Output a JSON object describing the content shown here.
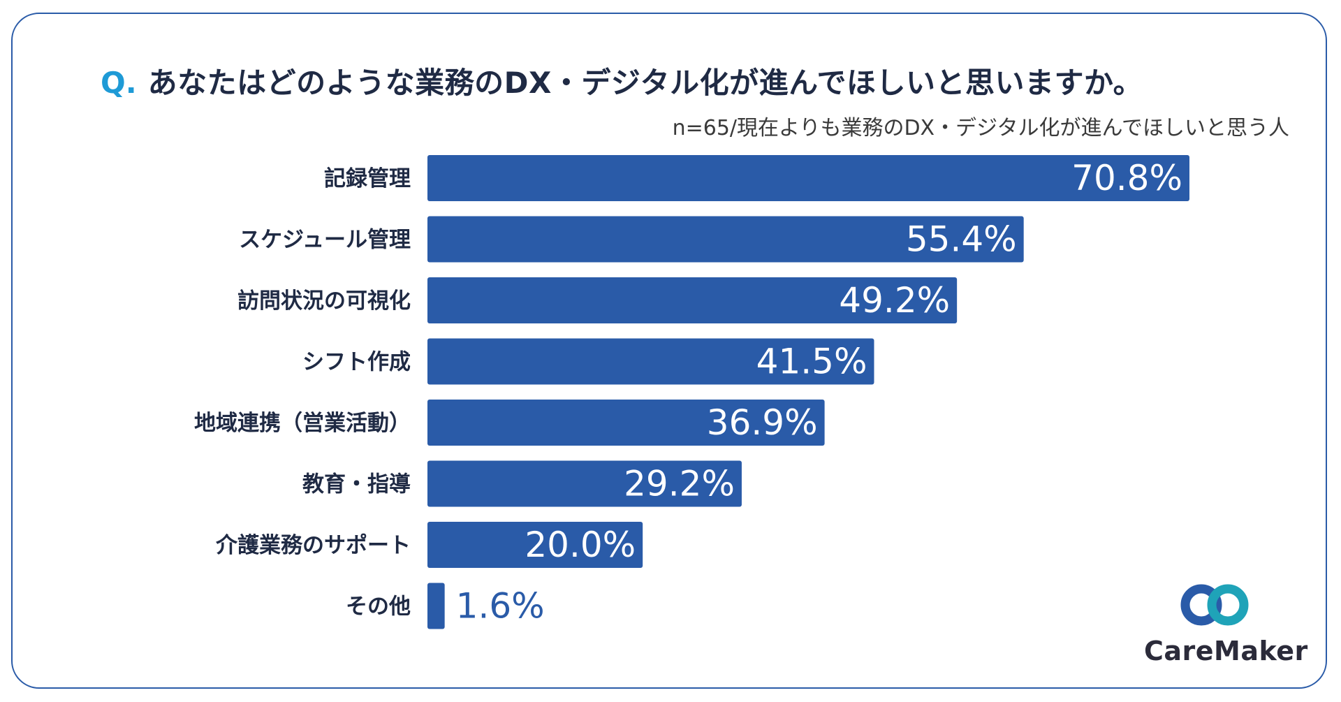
{
  "header": {
    "q_mark": "Q.",
    "title": "あなたはどのような業務のDX・デジタル化が進んでほしいと思いますか。",
    "subtitle": "n=65/現在よりも業務のDX・デジタル化が進んでほしいと思う人"
  },
  "colors": {
    "bar": "#2a5ba8",
    "accent": "#1e9ad6",
    "border": "#2a5ba8",
    "logo_dark": "#2a5ba8",
    "logo_light": "#1fa3b8"
  },
  "chart_data": {
    "type": "bar",
    "orientation": "horizontal",
    "title": "あなたはどのような業務のDX・デジタル化が進んでほしいと思いますか。",
    "categories": [
      "記録管理",
      "スケジュール管理",
      "訪問状況の可視化",
      "シフト作成",
      "地域連携（営業活動）",
      "教育・指導",
      "介護業務のサポート",
      "その他"
    ],
    "values": [
      70.8,
      55.4,
      49.2,
      41.5,
      36.9,
      29.2,
      20.0,
      1.6
    ],
    "value_labels": [
      "70.8%",
      "55.4%",
      "49.2%",
      "41.5%",
      "36.9%",
      "29.2%",
      "20.0%",
      "1.6%"
    ],
    "xlim": [
      0,
      100
    ],
    "xlabel": "",
    "ylabel": "",
    "grid": false
  },
  "brand": {
    "name": "CareMaker",
    "icon": "caremaker-logo-icon"
  }
}
